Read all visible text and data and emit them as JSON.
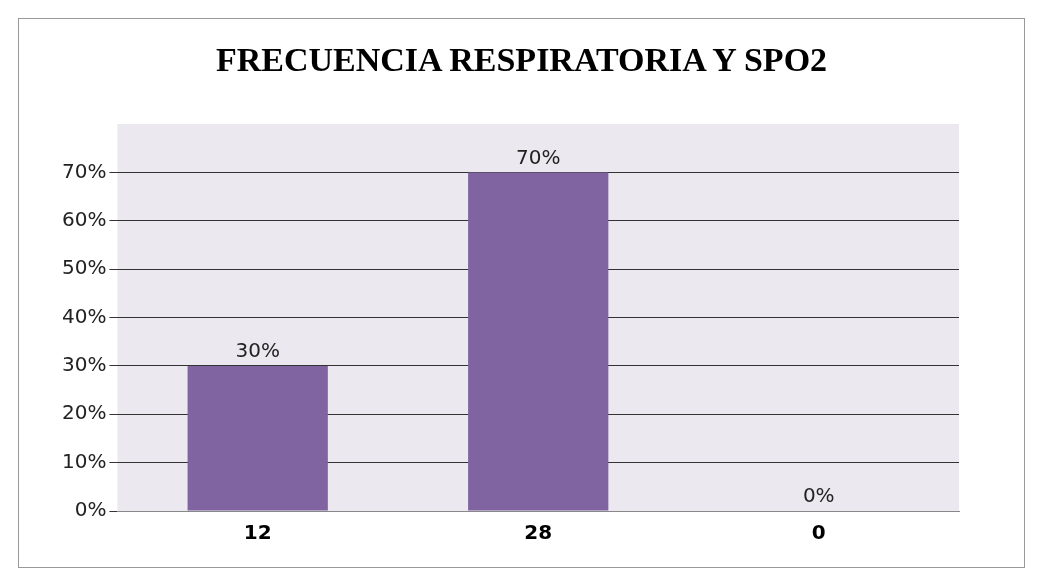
{
  "chart_data": {
    "type": "bar",
    "title": "FRECUENCIA RESPIRATORIA Y SPO2",
    "categories": [
      "12",
      "28",
      "0"
    ],
    "values": [
      30,
      70,
      0
    ],
    "value_labels": [
      "30%",
      "70%",
      "0%"
    ],
    "color": "#8064a2",
    "ylim": [
      0,
      80
    ],
    "yticks": [
      {
        "value": 0,
        "label": "0%"
      },
      {
        "value": 10,
        "label": "10%"
      },
      {
        "value": 20,
        "label": "20%"
      },
      {
        "value": 30,
        "label": "30%"
      },
      {
        "value": 40,
        "label": "40%"
      },
      {
        "value": 50,
        "label": "50%"
      },
      {
        "value": 60,
        "label": "60%"
      },
      {
        "value": 70,
        "label": "70%"
      }
    ],
    "grid": "y",
    "legend": false
  }
}
